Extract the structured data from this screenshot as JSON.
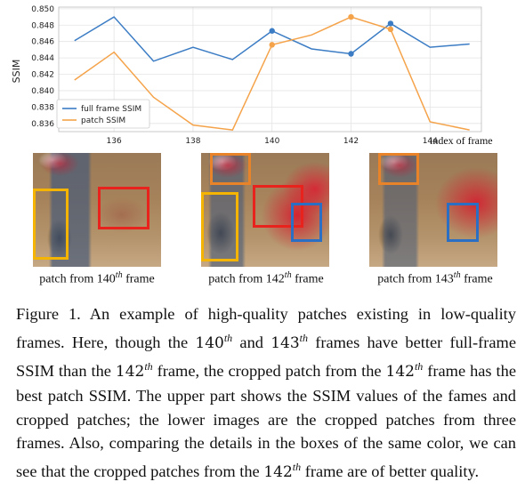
{
  "chart_data": {
    "type": "line",
    "x": [
      135,
      136,
      137,
      138,
      139,
      140,
      141,
      142,
      143,
      144,
      145
    ],
    "xticks": [
      "136",
      "138",
      "140",
      "142",
      "144"
    ],
    "xtick_values": [
      136,
      138,
      140,
      142,
      144
    ],
    "yticks": [
      "0.836",
      "0.838",
      "0.840",
      "0.842",
      "0.844",
      "0.846",
      "0.848",
      "0.850"
    ],
    "ylim": [
      0.835,
      0.8502
    ],
    "xlim": [
      134.6,
      145.3
    ],
    "ylabel": "SSIM",
    "xlabel": "index of frame",
    "legend_position": "lower-left",
    "series": [
      {
        "name": "full frame SSIM",
        "color": "#3b7cc4",
        "values": [
          0.8461,
          0.849,
          0.8436,
          0.8453,
          0.8438,
          0.8473,
          0.8451,
          0.8445,
          0.8482,
          0.8453,
          0.8457
        ],
        "highlight": [
          140,
          142,
          143
        ]
      },
      {
        "name": "patch SSIM",
        "color": "#f5a34a",
        "values": [
          0.8413,
          0.8447,
          0.8392,
          0.8358,
          0.8352,
          0.8456,
          0.8468,
          0.849,
          0.8475,
          0.8362,
          0.8352
        ],
        "highlight": [
          140,
          142,
          143
        ]
      }
    ],
    "grid": true
  },
  "patches": [
    {
      "frame": "140",
      "prefix": "patch from ",
      "sup": "th",
      "suffix": " frame"
    },
    {
      "frame": "142",
      "prefix": "patch from ",
      "sup": "th",
      "suffix": " frame"
    },
    {
      "frame": "143",
      "prefix": "patch from ",
      "sup": "th",
      "suffix": " frame"
    }
  ],
  "box_colors": {
    "yellow": "#f4b400",
    "red": "#e8221d",
    "orange": "#e8832a",
    "blue": "#2a6fc4"
  },
  "caption": {
    "p1": "Figure 1. An example of high-quality patches existing in low-quality frames. Here, though the ",
    "n1": "140",
    "s1": "th",
    "p2": " and ",
    "n2": "143",
    "s2": "th",
    "p3": " frames have better full-frame SSIM than the ",
    "n3": "142",
    "s3": "th",
    "p4": " frame, the cropped patch from the ",
    "n4": "142",
    "s4": "th",
    "p5": " frame has the best patch SSIM. The upper part shows the SSIM values of the fames and cropped patches; the lower images are the cropped patches from three frames. Also, comparing the details in the boxes of the same color, we can see that the cropped patches from the ",
    "n5": "142",
    "s5": "th",
    "p6": " frame are of better quality."
  }
}
